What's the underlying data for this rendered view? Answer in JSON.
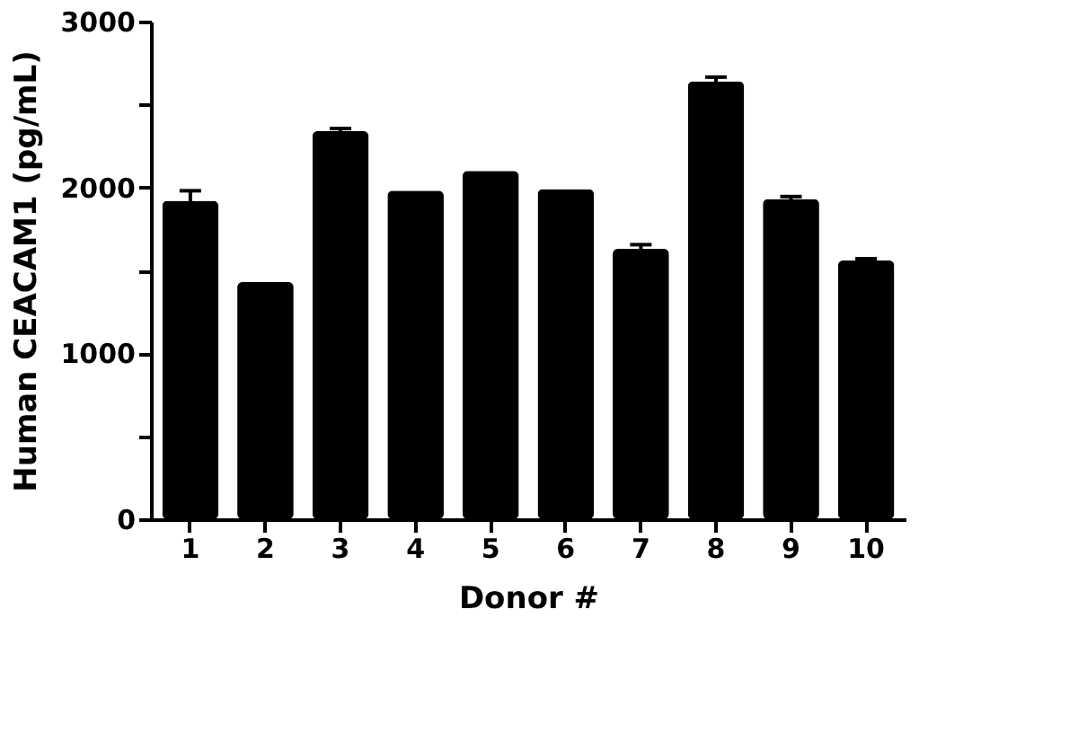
{
  "chart_data": {
    "type": "bar",
    "xlabel": "Donor #",
    "ylabel": "Human CEACAM1 (pg/mL)",
    "categories": [
      "1",
      "2",
      "3",
      "4",
      "5",
      "6",
      "7",
      "8",
      "9",
      "10"
    ],
    "series": [
      {
        "color": "#000000",
        "values": [
          1920,
          1430,
          2340,
          1980,
          2100,
          1990,
          1630,
          2640,
          1930,
          1560
        ],
        "errors": [
          60,
          null,
          15,
          null,
          null,
          null,
          25,
          25,
          15,
          10
        ]
      }
    ],
    "ylim": [
      0,
      3000
    ],
    "yticks": [
      0,
      {
        "value": 500,
        "label": null
      },
      1000,
      {
        "value": 1500,
        "label": null
      },
      2000,
      {
        "value": 2500,
        "label": null
      },
      3000
    ],
    "grid": false
  }
}
